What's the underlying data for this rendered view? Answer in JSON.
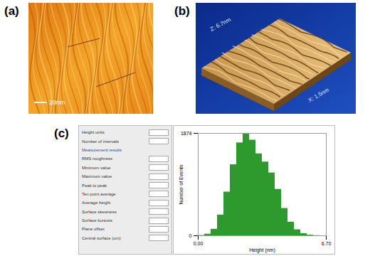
{
  "figure": {
    "panels": [
      {
        "label": "(a)",
        "scale_bar": "20nm"
      },
      {
        "label": "(b)",
        "z_axis": "Z: 6.7nm",
        "x_axis": "X: 1.5nm"
      },
      {
        "label": "(c)",
        "parameters": [
          "Height units",
          "Number of intervals",
          "Measurement results",
          "RMS roughness",
          "Minimum value",
          "Maximum value",
          "Peak to peak",
          "Ten point average",
          "Average height",
          "Surface skewness",
          "Surface kurtosis",
          "Plane offset",
          "Central surface (um)"
        ]
      }
    ]
  },
  "chart_data": {
    "type": "histogram",
    "xlabel": "Height (nm)",
    "ylabel": "Number of Events",
    "bins": [
      0,
      0.335,
      0.67,
      1.005,
      1.34,
      1.675,
      2.01,
      2.345,
      2.68,
      3.015,
      3.35,
      3.685,
      4.02,
      4.355,
      4.69,
      5.025,
      5.36,
      5.695,
      6.03,
      6.365,
      6.7
    ],
    "values": [
      5,
      30,
      120,
      380,
      800,
      1300,
      1700,
      1874,
      1750,
      1500,
      1350,
      1150,
      850,
      500,
      250,
      110,
      40,
      12,
      3,
      0
    ],
    "color": "#2e9a2e",
    "xlim": [
      0,
      6.7
    ],
    "xticks": [
      {
        "value": 0,
        "label": "0.00"
      },
      {
        "value": 6.7,
        "label": "6.70"
      }
    ],
    "ylim": [
      0,
      1874
    ],
    "yticks": [
      0,
      1874
    ],
    "grid": false
  }
}
